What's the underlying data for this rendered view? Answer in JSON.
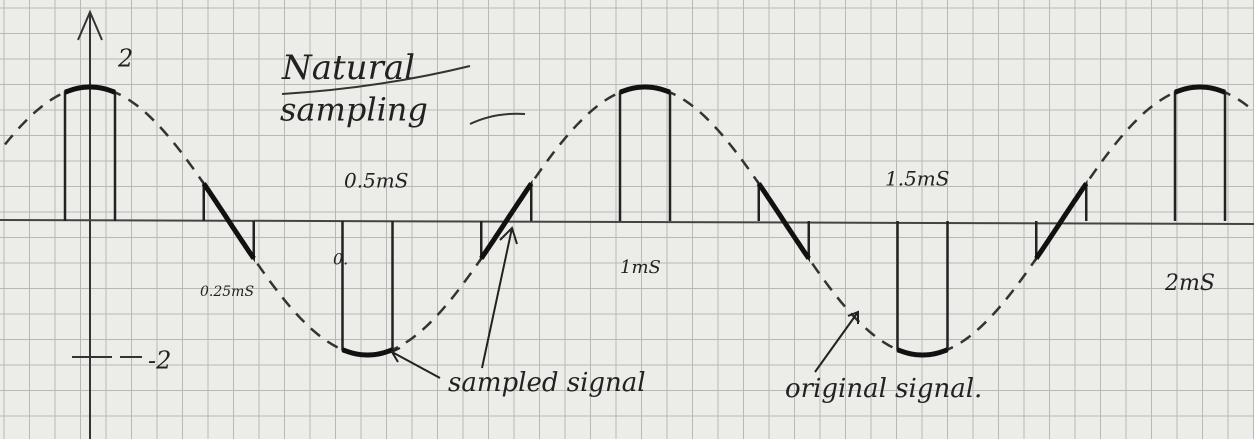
{
  "title": [
    "Natural",
    "sampling"
  ],
  "axis_labels": {
    "max": "2",
    "min": "-2"
  },
  "time_labels": [
    "0.25mS",
    "0.5mS",
    "0.",
    "1mS",
    "1.5mS",
    "2mS"
  ],
  "annotations": {
    "sampled": "sampled signal",
    "original": "original signal."
  }
}
